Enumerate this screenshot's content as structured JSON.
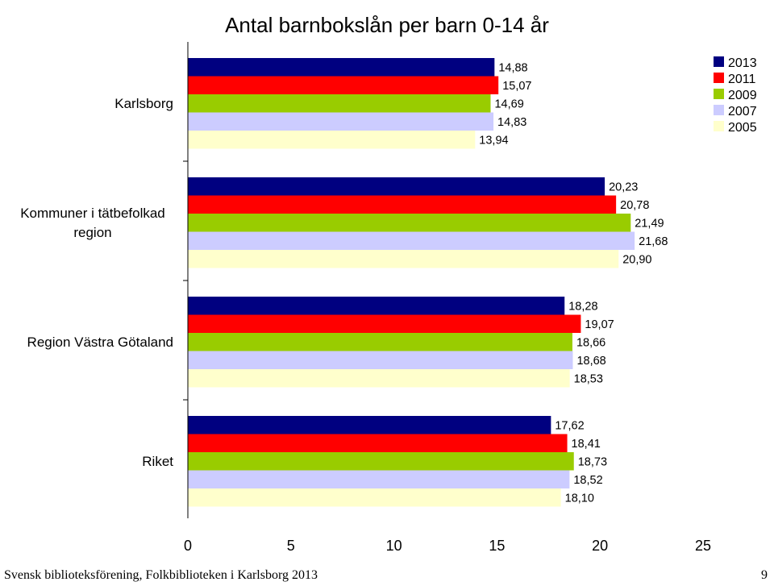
{
  "chart_data": {
    "type": "bar",
    "orientation": "horizontal",
    "title": "Antal barnbokslån per barn 0-14 år",
    "categories": [
      "Karlsborg",
      "Kommuner i tätbefolkad region",
      "Region Västra Götaland",
      "Riket"
    ],
    "series": [
      {
        "name": "2013",
        "color": "#000080",
        "values": [
          14.88,
          20.23,
          18.28,
          17.62
        ],
        "labels": [
          "14,88",
          "20,23",
          "18,28",
          "17,62"
        ]
      },
      {
        "name": "2011",
        "color": "#ff0000",
        "values": [
          15.07,
          20.78,
          19.07,
          18.41
        ],
        "labels": [
          "15,07",
          "20,78",
          "19,07",
          "18,41"
        ]
      },
      {
        "name": "2009",
        "color": "#99cc00",
        "values": [
          14.69,
          21.49,
          18.66,
          18.73
        ],
        "labels": [
          "14,69",
          "21,49",
          "18,66",
          "18,73"
        ]
      },
      {
        "name": "2007",
        "color": "#ccccff",
        "values": [
          14.83,
          21.68,
          18.68,
          18.52
        ],
        "labels": [
          "14,83",
          "21,68",
          "18,68",
          "18,52"
        ]
      },
      {
        "name": "2005",
        "color": "#ffffcc",
        "values": [
          13.94,
          20.9,
          18.53,
          18.1
        ],
        "labels": [
          "13,94",
          "20,90",
          "18,53",
          "18,10"
        ]
      }
    ],
    "xlim": [
      0,
      25
    ],
    "xticks": [
      0,
      5,
      10,
      15,
      20,
      25
    ],
    "grid": false,
    "legend_position": "top-right"
  },
  "footer": {
    "source": "Svensk biblioteksförening, Folkbiblioteken i Karlsborg 2013",
    "page_number": "9"
  }
}
